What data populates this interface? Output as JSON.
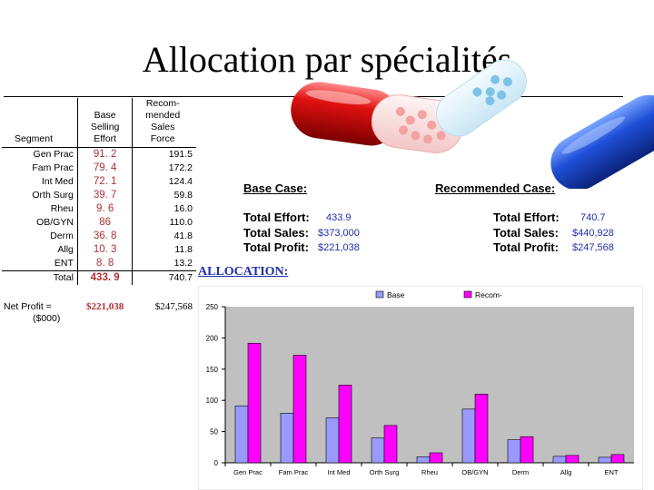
{
  "title": "Allocation par spécialités",
  "table": {
    "headers": {
      "segment": "Segment",
      "base": [
        "Base",
        "Selling",
        "Effort"
      ],
      "recommended": [
        "Recom-",
        "mended Sales",
        "Force"
      ]
    },
    "rows": [
      {
        "segment": "Gen Prac",
        "base": "91. 2",
        "rec": "191.5"
      },
      {
        "segment": "Fam Prac",
        "base": "79. 4",
        "rec": "172.2"
      },
      {
        "segment": "Int Med",
        "base": "72. 1",
        "rec": "124.4"
      },
      {
        "segment": "Orth Surg",
        "base": "39. 7",
        "rec": "59.8"
      },
      {
        "segment": "Rheu",
        "base": "9. 6",
        "rec": "16.0"
      },
      {
        "segment": "OB/GYN",
        "base": "86",
        "rec": "110.0"
      },
      {
        "segment": "Derm",
        "base": "36. 8",
        "rec": "41.8"
      },
      {
        "segment": "Allg",
        "base": "10. 3",
        "rec": "11.8"
      },
      {
        "segment": "ENT",
        "base": "8. 8",
        "rec": "13.2"
      }
    ],
    "total": {
      "label": "Total",
      "base": "433. 9",
      "rec": "740.7"
    },
    "net_profit": {
      "label_line1": "Net Profit =",
      "label_line2": "($000)",
      "base": "$221,038",
      "rec": "$247,568"
    }
  },
  "base_case": {
    "heading": "Base Case:",
    "effort_label": "Total Effort:",
    "effort": "433.9",
    "sales_label": "Total Sales:",
    "sales": "$373,000",
    "profit_label": "Total Profit:",
    "profit": "$221,038"
  },
  "recommended_case": {
    "heading": "Recommended Case:",
    "effort_label": "Total Effort:",
    "effort": "740.7",
    "sales_label": "Total Sales:",
    "sales": "$440,928",
    "profit_label": "Total Profit:",
    "profit": "$247,568"
  },
  "allocation_label": "ALLOCATION:",
  "colors": {
    "base": "#9999ff",
    "recommended": "#ff00ff",
    "plot_bg": "#c0c0c0",
    "bar_edge": "#000000"
  },
  "chart_data": {
    "type": "bar",
    "categories": [
      "Gen Prac",
      "Fam Prac",
      "Int Med",
      "Orth Surg",
      "Rheu",
      "OB/GYN",
      "Derm",
      "Allg",
      "ENT"
    ],
    "series": [
      {
        "name": "Base",
        "values": [
          91.2,
          79.4,
          72.1,
          39.7,
          9.6,
          86,
          36.8,
          10.3,
          8.8
        ]
      },
      {
        "name": "Recom-",
        "values": [
          191.5,
          172.2,
          124.4,
          59.8,
          16.0,
          110.0,
          41.8,
          11.8,
          13.2
        ]
      }
    ],
    "yticks": [
      0,
      50,
      100,
      150,
      200,
      250
    ],
    "ylim": [
      0,
      250
    ],
    "legend": "top-center",
    "grid": false
  }
}
